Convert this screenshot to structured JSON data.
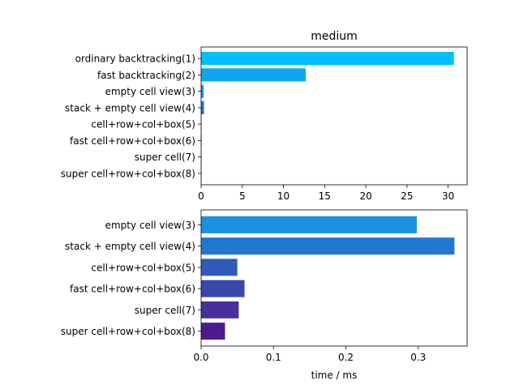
{
  "chart_data": [
    {
      "type": "bar",
      "orientation": "horizontal",
      "title": "medium",
      "xlabel": "",
      "ylabel": "",
      "categories": [
        "ordinary backtracking(1)",
        "fast backtracking(2)",
        "empty cell view(3)",
        "stack + empty cell view(4)",
        "cell+row+col+box(5)",
        "fast cell+row+col+box(6)",
        "super cell(7)",
        "super cell+row+col+box(8)"
      ],
      "values": [
        30.7,
        12.7,
        0.3,
        0.35,
        0.05,
        0.06,
        0.052,
        0.033
      ],
      "colors": [
        "#00bfff",
        "#0ea5ee",
        "#1993e0",
        "#2277d0",
        "#2f5ab8",
        "#3a47aa",
        "#45309c",
        "#4f1a8e"
      ],
      "xlim": [
        0,
        32.3
      ],
      "xticks": [
        "0",
        "5",
        "10",
        "15",
        "20",
        "25",
        "30"
      ],
      "xtick_values": [
        0,
        5,
        10,
        15,
        20,
        25,
        30
      ]
    },
    {
      "type": "bar",
      "orientation": "horizontal",
      "title": "",
      "xlabel": "time / ms",
      "ylabel": "",
      "categories": [
        "empty cell view(3)",
        "stack + empty cell view(4)",
        "cell+row+col+box(5)",
        "fast cell+row+col+box(6)",
        "super cell(7)",
        "super cell+row+col+box(8)"
      ],
      "values": [
        0.298,
        0.35,
        0.05,
        0.06,
        0.052,
        0.033
      ],
      "colors": [
        "#1993e0",
        "#2277d0",
        "#2f5ab8",
        "#3a47aa",
        "#45309c",
        "#4f1a8e"
      ],
      "xlim": [
        0,
        0.3675
      ],
      "xticks": [
        "0.0",
        "0.1",
        "0.2",
        "0.3"
      ],
      "xtick_values": [
        0,
        0.1,
        0.2,
        0.3
      ]
    }
  ]
}
